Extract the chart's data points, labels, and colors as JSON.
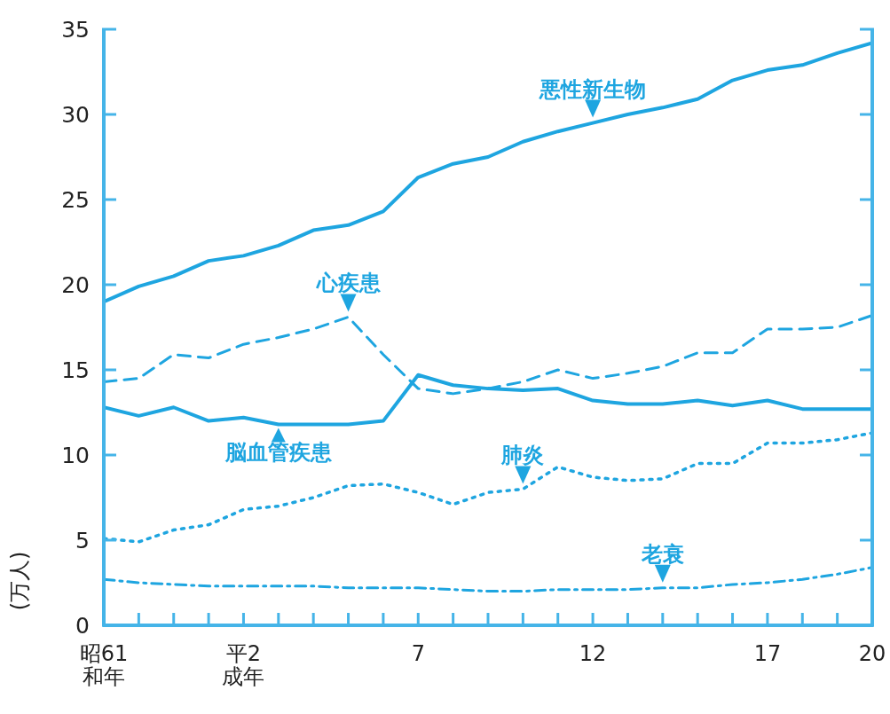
{
  "chart_data": {
    "type": "line",
    "ylabel": "(万人)",
    "categories": [
      "昭61\n和年",
      null,
      null,
      null,
      "平2\n成年",
      null,
      null,
      null,
      null,
      "7",
      null,
      null,
      null,
      null,
      "12",
      null,
      null,
      null,
      null,
      "17",
      null,
      null,
      "20"
    ],
    "ylim": [
      0,
      35
    ],
    "yticks": [
      0,
      5,
      10,
      15,
      20,
      25,
      30,
      35
    ],
    "marker": "none",
    "series": [
      {
        "name": "悪性新生物",
        "color": "#1ea5e0",
        "line_style": "solid",
        "values": [
          19.0,
          19.9,
          20.5,
          21.4,
          21.7,
          22.3,
          23.2,
          23.5,
          24.3,
          26.3,
          27.1,
          27.5,
          28.4,
          29.0,
          29.5,
          30.0,
          30.4,
          30.9,
          32.0,
          32.6,
          32.9,
          33.6,
          34.2
        ]
      },
      {
        "name": "心疾患",
        "color": "#1ea5e0",
        "line_style": "dashed",
        "values": [
          14.3,
          14.5,
          15.9,
          15.7,
          16.5,
          16.9,
          17.4,
          18.1,
          15.9,
          13.9,
          13.6,
          13.9,
          14.3,
          15.0,
          14.5,
          14.8,
          15.2,
          16.0,
          16.0,
          17.4,
          17.4,
          17.5,
          18.2
        ]
      },
      {
        "name": "脳血管疾患",
        "color": "#1ea5e0",
        "line_style": "solid",
        "values": [
          12.8,
          12.3,
          12.8,
          12.0,
          12.2,
          11.8,
          11.8,
          11.8,
          12.0,
          14.7,
          14.1,
          13.9,
          13.8,
          13.9,
          13.2,
          13.0,
          13.0,
          13.2,
          12.9,
          13.2,
          12.7,
          12.7,
          12.7
        ]
      },
      {
        "name": "肺炎",
        "color": "#1ea5e0",
        "line_style": "dotted",
        "values": [
          5.1,
          4.9,
          5.6,
          5.9,
          6.8,
          7.0,
          7.5,
          8.2,
          8.3,
          7.8,
          7.1,
          7.8,
          8.0,
          9.3,
          8.7,
          8.5,
          8.6,
          9.5,
          9.5,
          10.7,
          10.7,
          10.9,
          11.3
        ]
      },
      {
        "name": "老衰",
        "color": "#1ea5e0",
        "line_style": "dashdot",
        "values": [
          2.7,
          2.5,
          2.4,
          2.3,
          2.3,
          2.3,
          2.3,
          2.2,
          2.2,
          2.2,
          2.1,
          2.0,
          2.0,
          2.1,
          2.1,
          2.1,
          2.2,
          2.2,
          2.4,
          2.5,
          2.7,
          3.0,
          3.4
        ]
      }
    ]
  }
}
